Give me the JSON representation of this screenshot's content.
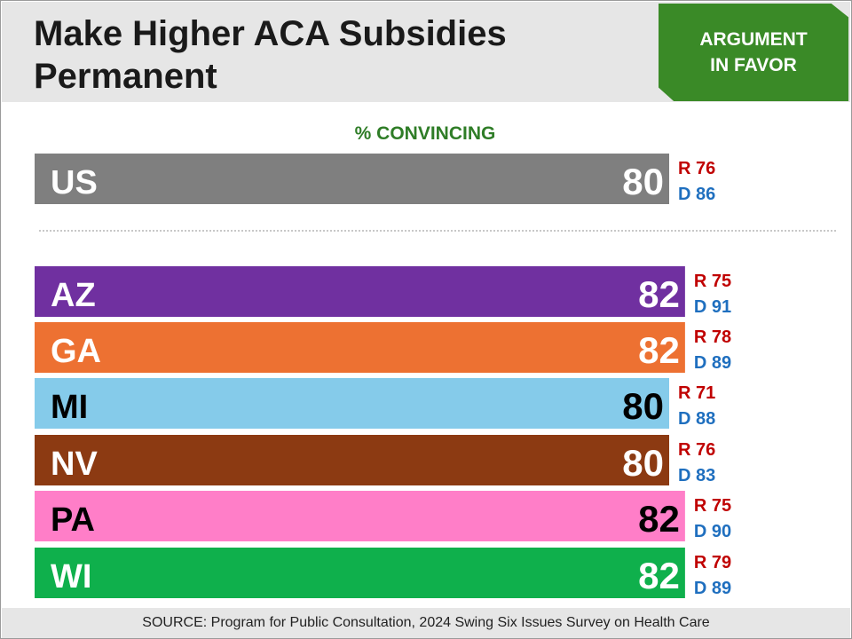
{
  "header": {
    "title_line1": "Make Higher ACA Subsidies",
    "title_line2": "Permanent",
    "badge_line1": "ARGUMENT",
    "badge_line2": "IN FAVOR"
  },
  "footer": {
    "source": "SOURCE: Program for Public Consultation, 2024 Swing Six Issues Survey on Health Care"
  },
  "colors": {
    "badge": "#3a8a27",
    "subtitle": "#2f7d27",
    "republican": "#c00000",
    "democrat": "#1f6fbf"
  },
  "chart_data": {
    "type": "bar",
    "orientation": "horizontal",
    "title": "% CONVINCING",
    "ylim": [
      0,
      100
    ],
    "rows": [
      {
        "label": "US",
        "value": 80,
        "r_label": "R 76",
        "d_label": "D 86",
        "color": "#7f7f7f",
        "text_color": "#ffffff"
      },
      {
        "label": "AZ",
        "value": 82,
        "r_label": "R 75",
        "d_label": "D 91",
        "color": "#7030a0",
        "text_color": "#ffffff"
      },
      {
        "label": "GA",
        "value": 82,
        "r_label": "R 78",
        "d_label": "D 89",
        "color": "#ed7132",
        "text_color": "#ffffff"
      },
      {
        "label": "MI",
        "value": 80,
        "r_label": "R 71",
        "d_label": "D 88",
        "color": "#85cbea",
        "text_color": "#000000"
      },
      {
        "label": "NV",
        "value": 80,
        "r_label": "R 76",
        "d_label": "D 83",
        "color": "#8c3a12",
        "text_color": "#ffffff"
      },
      {
        "label": "PA",
        "value": 82,
        "r_label": "R 75",
        "d_label": "D 90",
        "color": "#ff7ec8",
        "text_color": "#000000"
      },
      {
        "label": "WI",
        "value": 82,
        "r_label": "R 79",
        "d_label": "D 89",
        "color": "#0fb04c",
        "text_color": "#ffffff"
      }
    ]
  }
}
